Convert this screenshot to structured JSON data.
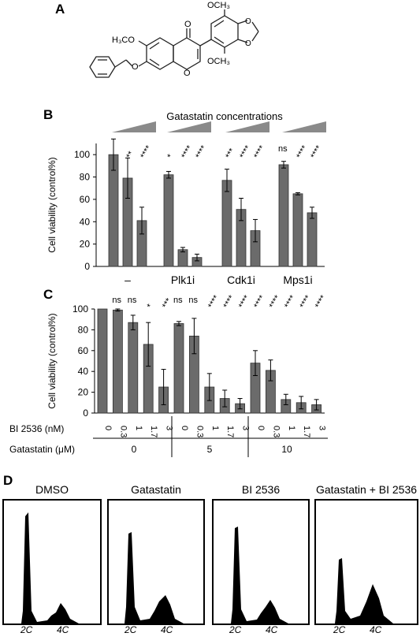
{
  "panels": {
    "a": "A",
    "b": "B",
    "c": "C",
    "d": "D"
  },
  "structure": {
    "ome_top": "OCH₃",
    "ome_bottom": "OCH₃",
    "h3co": "H₃CO",
    "carbonyl_o": "O",
    "ring_o": "O"
  },
  "panel_b": {
    "legend_title": "Gatastatin concentrations",
    "ylabel": "Cell viability (control%)",
    "yticks": [
      "0",
      "20",
      "40",
      "60",
      "80",
      "100"
    ],
    "group_labels": [
      "–",
      "Plk1i",
      "Cdk1i",
      "Mps1i"
    ],
    "sig": [
      [
        "",
        "**",
        "****"
      ],
      [
        "*",
        "****",
        "****"
      ],
      [
        "***",
        "****",
        "****"
      ],
      [
        "ns",
        "****",
        "****"
      ]
    ]
  },
  "panel_c": {
    "ylabel": "Cell viability (control%)",
    "yticks": [
      "0",
      "20",
      "40",
      "60",
      "80",
      "100"
    ],
    "row1_label": "BI 2536 (nM)",
    "row2_label": "Gatastatin (μM)",
    "bi_values": [
      "0",
      "0.3",
      "1",
      "1.7",
      "3",
      "0",
      "0.3",
      "1",
      "1.7",
      "3",
      "0",
      "0.3",
      "1",
      "1.7",
      "3"
    ],
    "gatastatin_values": [
      "0",
      "5",
      "10"
    ],
    "sig": [
      "",
      "ns",
      "ns",
      "*",
      "***",
      "ns",
      "ns",
      "****",
      "****",
      "****",
      "****",
      "****",
      "****",
      "****",
      "****"
    ]
  },
  "panel_d": {
    "titles": [
      "DMSO",
      "Gatastatin",
      "BI 2536",
      "Gatastatin + BI 2536"
    ],
    "x2c": "2C",
    "x4c": "4C"
  },
  "chart_data": [
    {
      "type": "bar",
      "panel": "B",
      "ylabel": "Cell viability (control%)",
      "ylim": [
        0,
        110
      ],
      "groups": [
        "–",
        "Plk1i",
        "Cdk1i",
        "Mps1i"
      ],
      "series_note": "Gatastatin concentrations (increasing, 3 levels)",
      "values": [
        [
          100,
          79,
          41
        ],
        [
          82,
          15,
          8
        ],
        [
          77,
          51,
          32
        ],
        [
          91,
          65,
          48
        ]
      ],
      "errors": [
        [
          14,
          18,
          12
        ],
        [
          3,
          2,
          3
        ],
        [
          10,
          10,
          10
        ],
        [
          3,
          1,
          5
        ]
      ]
    },
    {
      "type": "bar",
      "panel": "C",
      "ylabel": "Cell viability (control%)",
      "ylim": [
        0,
        100
      ],
      "categories": [
        "0",
        "0.3",
        "1",
        "1.7",
        "3",
        "0",
        "0.3",
        "1",
        "1.7",
        "3",
        "0",
        "0.3",
        "1",
        "1.7",
        "3"
      ],
      "values": [
        100,
        99,
        87,
        66,
        25,
        86,
        74,
        25,
        14,
        9,
        48,
        41,
        13,
        10,
        8
      ],
      "errors": [
        0,
        1,
        7,
        21,
        17,
        2,
        17,
        13,
        8,
        5,
        12,
        10,
        5,
        6,
        5
      ]
    }
  ]
}
